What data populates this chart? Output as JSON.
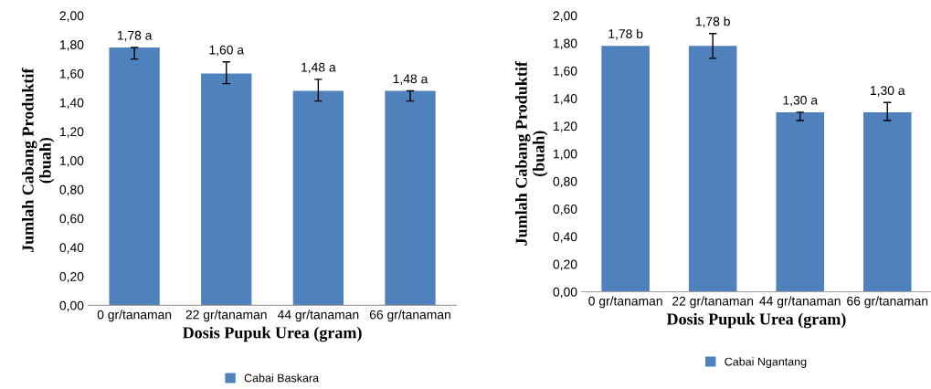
{
  "chart_data": [
    {
      "type": "bar",
      "categories": [
        "0 gr/tanaman",
        "22 gr/tanaman",
        "44 gr/tanaman",
        "66 gr/tanaman"
      ],
      "xlabel": "Dosis Pupuk Urea (gram)",
      "ylabel": "Jumlah Cabang Produktif\n(buah)",
      "series": [
        {
          "name": "Cabai Baskara",
          "color": "#4f81bd",
          "values": [
            1.78,
            1.6,
            1.48,
            1.48
          ],
          "errors": [
            [
              1.7,
              1.78
            ],
            [
              1.53,
              1.68
            ],
            [
              1.41,
              1.56
            ],
            [
              1.41,
              1.48
            ]
          ],
          "value_labels": [
            "1,78 a",
            "1,60 a",
            "1,48 a",
            "1,48 a"
          ]
        }
      ],
      "ylim": [
        0,
        2
      ],
      "yticks": [
        {
          "value": 0,
          "label": "0,00"
        },
        {
          "value": 0.2,
          "label": "0,20"
        },
        {
          "value": 0.4,
          "label": "0,40"
        },
        {
          "value": 0.6,
          "label": "0,60"
        },
        {
          "value": 0.8,
          "label": "0,80"
        },
        {
          "value": 1.0,
          "label": "1,00"
        },
        {
          "value": 1.2,
          "label": "1,20"
        },
        {
          "value": 1.4,
          "label": "1,40"
        },
        {
          "value": 1.6,
          "label": "1,60"
        },
        {
          "value": 1.8,
          "label": "1,80"
        },
        {
          "value": 2.0,
          "label": "2,00"
        }
      ],
      "grid": false,
      "legend": "bottom"
    },
    {
      "type": "bar",
      "categories": [
        "0 gr/tanaman",
        "22 gr/tanaman",
        "44 gr/tanaman",
        "66 gr/tanaman"
      ],
      "xlabel": "Dosis Pupuk Urea (gram)",
      "ylabel": "Jumlah Cabang Produktif\n(buah)",
      "series": [
        {
          "name": "Cabai Ngantang",
          "color": "#4f81bd",
          "values": [
            1.78,
            1.78,
            1.3,
            1.3
          ],
          "errors": [
            null,
            [
              1.69,
              1.87
            ],
            [
              1.24,
              1.3
            ],
            [
              1.24,
              1.37
            ]
          ],
          "value_labels": [
            "1,78 b",
            "1,78 b",
            "1,30 a",
            "1,30 a"
          ]
        }
      ],
      "ylim": [
        0,
        2
      ],
      "yticks": [
        {
          "value": 0,
          "label": "0,00"
        },
        {
          "value": 0.2,
          "label": "0,20"
        },
        {
          "value": 0.4,
          "label": "0,40"
        },
        {
          "value": 0.6,
          "label": "0,60"
        },
        {
          "value": 0.8,
          "label": "0,80"
        },
        {
          "value": 1.0,
          "label": "1,00"
        },
        {
          "value": 1.2,
          "label": "1,20"
        },
        {
          "value": 1.4,
          "label": "1,40"
        },
        {
          "value": 1.6,
          "label": "1,60"
        },
        {
          "value": 1.8,
          "label": "1,80"
        },
        {
          "value": 2.0,
          "label": "2,00"
        }
      ],
      "grid": false,
      "legend": "bottom"
    }
  ]
}
